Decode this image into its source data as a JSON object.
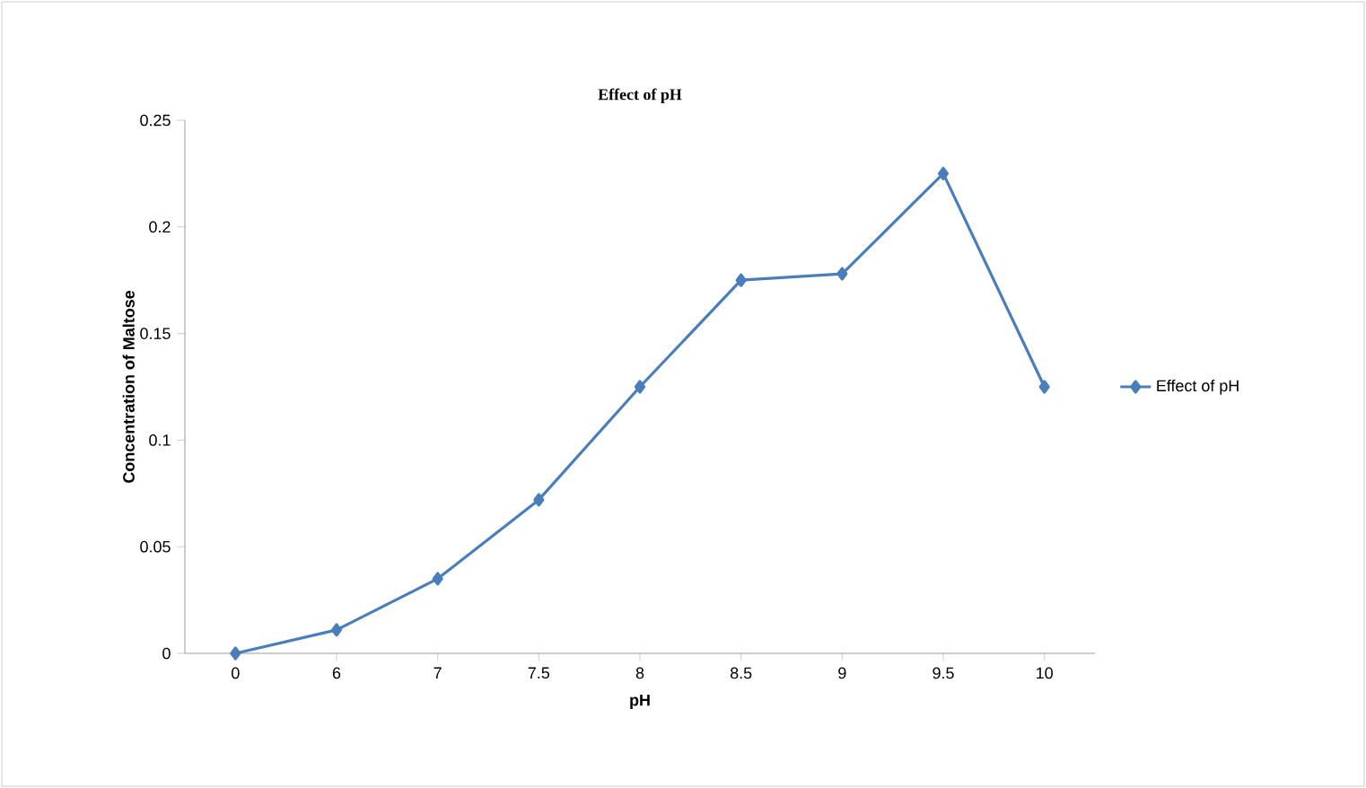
{
  "chart_data": {
    "type": "line",
    "title": "Effect of pH",
    "xlabel": "pH",
    "ylabel": "Concentration of Maltose",
    "categories": [
      "0",
      "6",
      "7",
      "7.5",
      "8",
      "8.5",
      "9",
      "9.5",
      "10"
    ],
    "series": [
      {
        "name": "Effect of pH",
        "color": "#4a7ebb",
        "values": [
          0,
          0.011,
          0.035,
          0.072,
          0.125,
          0.175,
          0.178,
          0.225,
          0.125
        ]
      }
    ],
    "ylim": [
      0,
      0.25
    ],
    "yticks": [
      0,
      0.05,
      0.1,
      0.15,
      0.2,
      0.25
    ],
    "grid": false,
    "legend": "right",
    "marker": "diamond",
    "line_style": "solid"
  }
}
